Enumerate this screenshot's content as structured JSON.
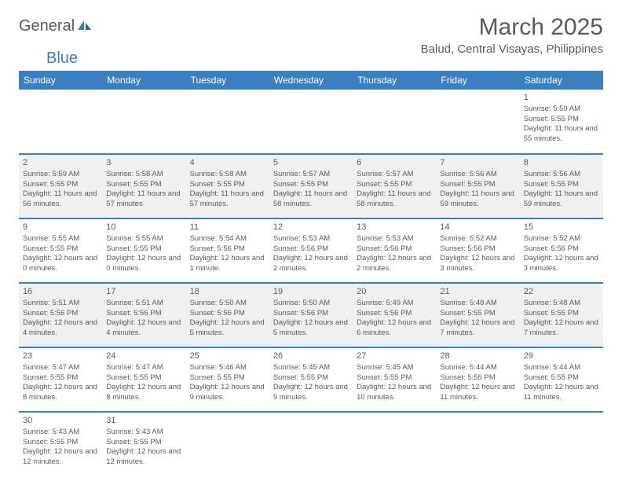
{
  "logo": {
    "text1": "General",
    "text2": "Blue"
  },
  "title": "March 2025",
  "location": "Balud, Central Visayas, Philippines",
  "colors": {
    "header_bg": "#3a7fbf",
    "header_text": "#ffffff",
    "text": "#5a5a5a",
    "shaded": "#f0f0f0",
    "divider": "#3a7fbf",
    "cell_border": "#c8c8c8"
  },
  "day_names": [
    "Sunday",
    "Monday",
    "Tuesday",
    "Wednesday",
    "Thursday",
    "Friday",
    "Saturday"
  ],
  "weeks": [
    [
      null,
      null,
      null,
      null,
      null,
      null,
      {
        "n": "1",
        "sr": "Sunrise: 5:59 AM",
        "ss": "Sunset: 5:55 PM",
        "dl": "Daylight: 11 hours and 55 minutes."
      }
    ],
    [
      {
        "n": "2",
        "sr": "Sunrise: 5:59 AM",
        "ss": "Sunset: 5:55 PM",
        "dl": "Daylight: 11 hours and 56 minutes.",
        "shaded": true
      },
      {
        "n": "3",
        "sr": "Sunrise: 5:58 AM",
        "ss": "Sunset: 5:55 PM",
        "dl": "Daylight: 11 hours and 57 minutes.",
        "shaded": true
      },
      {
        "n": "4",
        "sr": "Sunrise: 5:58 AM",
        "ss": "Sunset: 5:55 PM",
        "dl": "Daylight: 11 hours and 57 minutes.",
        "shaded": true
      },
      {
        "n": "5",
        "sr": "Sunrise: 5:57 AM",
        "ss": "Sunset: 5:55 PM",
        "dl": "Daylight: 11 hours and 58 minutes.",
        "shaded": true
      },
      {
        "n": "6",
        "sr": "Sunrise: 5:57 AM",
        "ss": "Sunset: 5:55 PM",
        "dl": "Daylight: 11 hours and 58 minutes.",
        "shaded": true
      },
      {
        "n": "7",
        "sr": "Sunrise: 5:56 AM",
        "ss": "Sunset: 5:55 PM",
        "dl": "Daylight: 11 hours and 59 minutes.",
        "shaded": true
      },
      {
        "n": "8",
        "sr": "Sunrise: 5:56 AM",
        "ss": "Sunset: 5:55 PM",
        "dl": "Daylight: 11 hours and 59 minutes.",
        "shaded": true
      }
    ],
    [
      {
        "n": "9",
        "sr": "Sunrise: 5:55 AM",
        "ss": "Sunset: 5:55 PM",
        "dl": "Daylight: 12 hours and 0 minutes."
      },
      {
        "n": "10",
        "sr": "Sunrise: 5:55 AM",
        "ss": "Sunset: 5:55 PM",
        "dl": "Daylight: 12 hours and 0 minutes."
      },
      {
        "n": "11",
        "sr": "Sunrise: 5:54 AM",
        "ss": "Sunset: 5:56 PM",
        "dl": "Daylight: 12 hours and 1 minute."
      },
      {
        "n": "12",
        "sr": "Sunrise: 5:53 AM",
        "ss": "Sunset: 5:56 PM",
        "dl": "Daylight: 12 hours and 2 minutes."
      },
      {
        "n": "13",
        "sr": "Sunrise: 5:53 AM",
        "ss": "Sunset: 5:56 PM",
        "dl": "Daylight: 12 hours and 2 minutes."
      },
      {
        "n": "14",
        "sr": "Sunrise: 5:52 AM",
        "ss": "Sunset: 5:56 PM",
        "dl": "Daylight: 12 hours and 3 minutes."
      },
      {
        "n": "15",
        "sr": "Sunrise: 5:52 AM",
        "ss": "Sunset: 5:56 PM",
        "dl": "Daylight: 12 hours and 3 minutes."
      }
    ],
    [
      {
        "n": "16",
        "sr": "Sunrise: 5:51 AM",
        "ss": "Sunset: 5:56 PM",
        "dl": "Daylight: 12 hours and 4 minutes.",
        "shaded": true
      },
      {
        "n": "17",
        "sr": "Sunrise: 5:51 AM",
        "ss": "Sunset: 5:56 PM",
        "dl": "Daylight: 12 hours and 4 minutes.",
        "shaded": true
      },
      {
        "n": "18",
        "sr": "Sunrise: 5:50 AM",
        "ss": "Sunset: 5:56 PM",
        "dl": "Daylight: 12 hours and 5 minutes.",
        "shaded": true
      },
      {
        "n": "19",
        "sr": "Sunrise: 5:50 AM",
        "ss": "Sunset: 5:56 PM",
        "dl": "Daylight: 12 hours and 5 minutes.",
        "shaded": true
      },
      {
        "n": "20",
        "sr": "Sunrise: 5:49 AM",
        "ss": "Sunset: 5:56 PM",
        "dl": "Daylight: 12 hours and 6 minutes.",
        "shaded": true
      },
      {
        "n": "21",
        "sr": "Sunrise: 5:48 AM",
        "ss": "Sunset: 5:55 PM",
        "dl": "Daylight: 12 hours and 7 minutes.",
        "shaded": true
      },
      {
        "n": "22",
        "sr": "Sunrise: 5:48 AM",
        "ss": "Sunset: 5:55 PM",
        "dl": "Daylight: 12 hours and 7 minutes.",
        "shaded": true
      }
    ],
    [
      {
        "n": "23",
        "sr": "Sunrise: 5:47 AM",
        "ss": "Sunset: 5:55 PM",
        "dl": "Daylight: 12 hours and 8 minutes."
      },
      {
        "n": "24",
        "sr": "Sunrise: 5:47 AM",
        "ss": "Sunset: 5:55 PM",
        "dl": "Daylight: 12 hours and 8 minutes."
      },
      {
        "n": "25",
        "sr": "Sunrise: 5:46 AM",
        "ss": "Sunset: 5:55 PM",
        "dl": "Daylight: 12 hours and 9 minutes."
      },
      {
        "n": "26",
        "sr": "Sunrise: 5:45 AM",
        "ss": "Sunset: 5:55 PM",
        "dl": "Daylight: 12 hours and 9 minutes."
      },
      {
        "n": "27",
        "sr": "Sunrise: 5:45 AM",
        "ss": "Sunset: 5:55 PM",
        "dl": "Daylight: 12 hours and 10 minutes."
      },
      {
        "n": "28",
        "sr": "Sunrise: 5:44 AM",
        "ss": "Sunset: 5:55 PM",
        "dl": "Daylight: 12 hours and 11 minutes."
      },
      {
        "n": "29",
        "sr": "Sunrise: 5:44 AM",
        "ss": "Sunset: 5:55 PM",
        "dl": "Daylight: 12 hours and 11 minutes."
      }
    ],
    [
      {
        "n": "30",
        "sr": "Sunrise: 5:43 AM",
        "ss": "Sunset: 5:55 PM",
        "dl": "Daylight: 12 hours and 12 minutes."
      },
      {
        "n": "31",
        "sr": "Sunrise: 5:43 AM",
        "ss": "Sunset: 5:55 PM",
        "dl": "Daylight: 12 hours and 12 minutes."
      },
      null,
      null,
      null,
      null,
      null
    ]
  ]
}
